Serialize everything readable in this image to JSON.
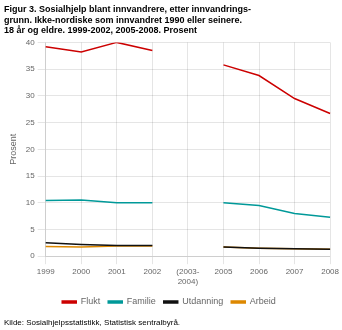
{
  "chart_data": {
    "type": "line",
    "title": [
      "Figur 3. Sosialhjelp blant innvandrere, etter innvandrings-",
      "grunn. Ikke-nordiske som innvandret 1990 eller seinere.",
      "18 år og eldre. 1999-2002, 2005-2008. Prosent"
    ],
    "ylabel": "Prosent",
    "source": "Kilde: Sosialhjelpsstatistikk, Statistisk sentralbyrå.",
    "categories": [
      "1999",
      "2000",
      "2001",
      "2002",
      "(2003-\n2004)",
      "2005",
      "2006",
      "2007",
      "2008"
    ],
    "series": [
      {
        "name": "Flukt",
        "color": "#cc0000",
        "values": [
          39.2,
          38.2,
          40.0,
          38.5,
          null,
          35.8,
          33.8,
          29.5,
          26.7
        ]
      },
      {
        "name": "Familie",
        "color": "#009999",
        "values": [
          10.4,
          10.5,
          10.0,
          10.0,
          null,
          10.0,
          9.5,
          8.0,
          7.3
        ]
      },
      {
        "name": "Utdanning",
        "color": "#111111",
        "values": [
          2.5,
          2.2,
          2.0,
          2.0,
          null,
          1.7,
          1.5,
          1.4,
          1.3
        ]
      },
      {
        "name": "Arbeid",
        "color": "#dd8800",
        "values": [
          1.8,
          1.7,
          1.9,
          1.9,
          null,
          1.7,
          1.5,
          1.4,
          1.3
        ]
      }
    ],
    "ylim": [
      0,
      40
    ],
    "yticks": [
      0,
      5,
      10,
      15,
      20,
      25,
      30,
      35,
      40
    ],
    "grid": true,
    "legend": "bottom"
  }
}
